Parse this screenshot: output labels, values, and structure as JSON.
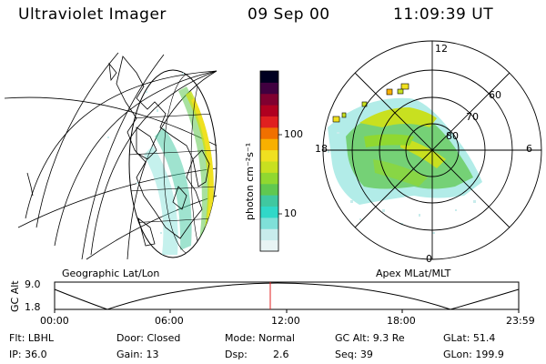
{
  "header": {
    "instrument": "Ultraviolet Imager",
    "date": "09 Sep 00",
    "time": "11:09:39 UT"
  },
  "colorbar": {
    "unit_label": "photon cm⁻²s⁻¹",
    "tick_100": "100",
    "tick_10": "10",
    "colors": [
      "#e8f4f4",
      "#c8ecec",
      "#7fe0d8",
      "#30d8c8",
      "#40c8a0",
      "#60c850",
      "#90d830",
      "#c8e020",
      "#f0e020",
      "#f8b000",
      "#f07000",
      "#e02020",
      "#b00020",
      "#800030",
      "#400040",
      "#000020"
    ]
  },
  "geo_map": {
    "label": "Geographic Lat/Lon"
  },
  "polar_plot": {
    "label": "Apex MLat/MLT",
    "mlt_top": "12",
    "mlt_left": "18",
    "mlt_right": "6",
    "mlt_bottom": "0",
    "lat_60": "60",
    "lat_70": "70",
    "lat_80": "80"
  },
  "orbit": {
    "axis_label": "GC Alt",
    "y_top": "9.0",
    "y_bottom": "1.8",
    "times": [
      "00:00",
      "06:00",
      "12:00",
      "18:00",
      "23:59"
    ],
    "current_marker_time": "11:09:39"
  },
  "status": {
    "flt": "Flt: LBHL",
    "ip": "IP: 36.0",
    "door": "Door: Closed",
    "gain": "Gain: 13",
    "mode": "Mode: Normal",
    "dsp_label": "Dsp:",
    "dsp_value": "2.6",
    "gc_alt": "GC Alt: 9.3 Re",
    "seq": "Seq: 39",
    "glat": "GLat: 51.4",
    "glon": "GLon: 199.9"
  }
}
